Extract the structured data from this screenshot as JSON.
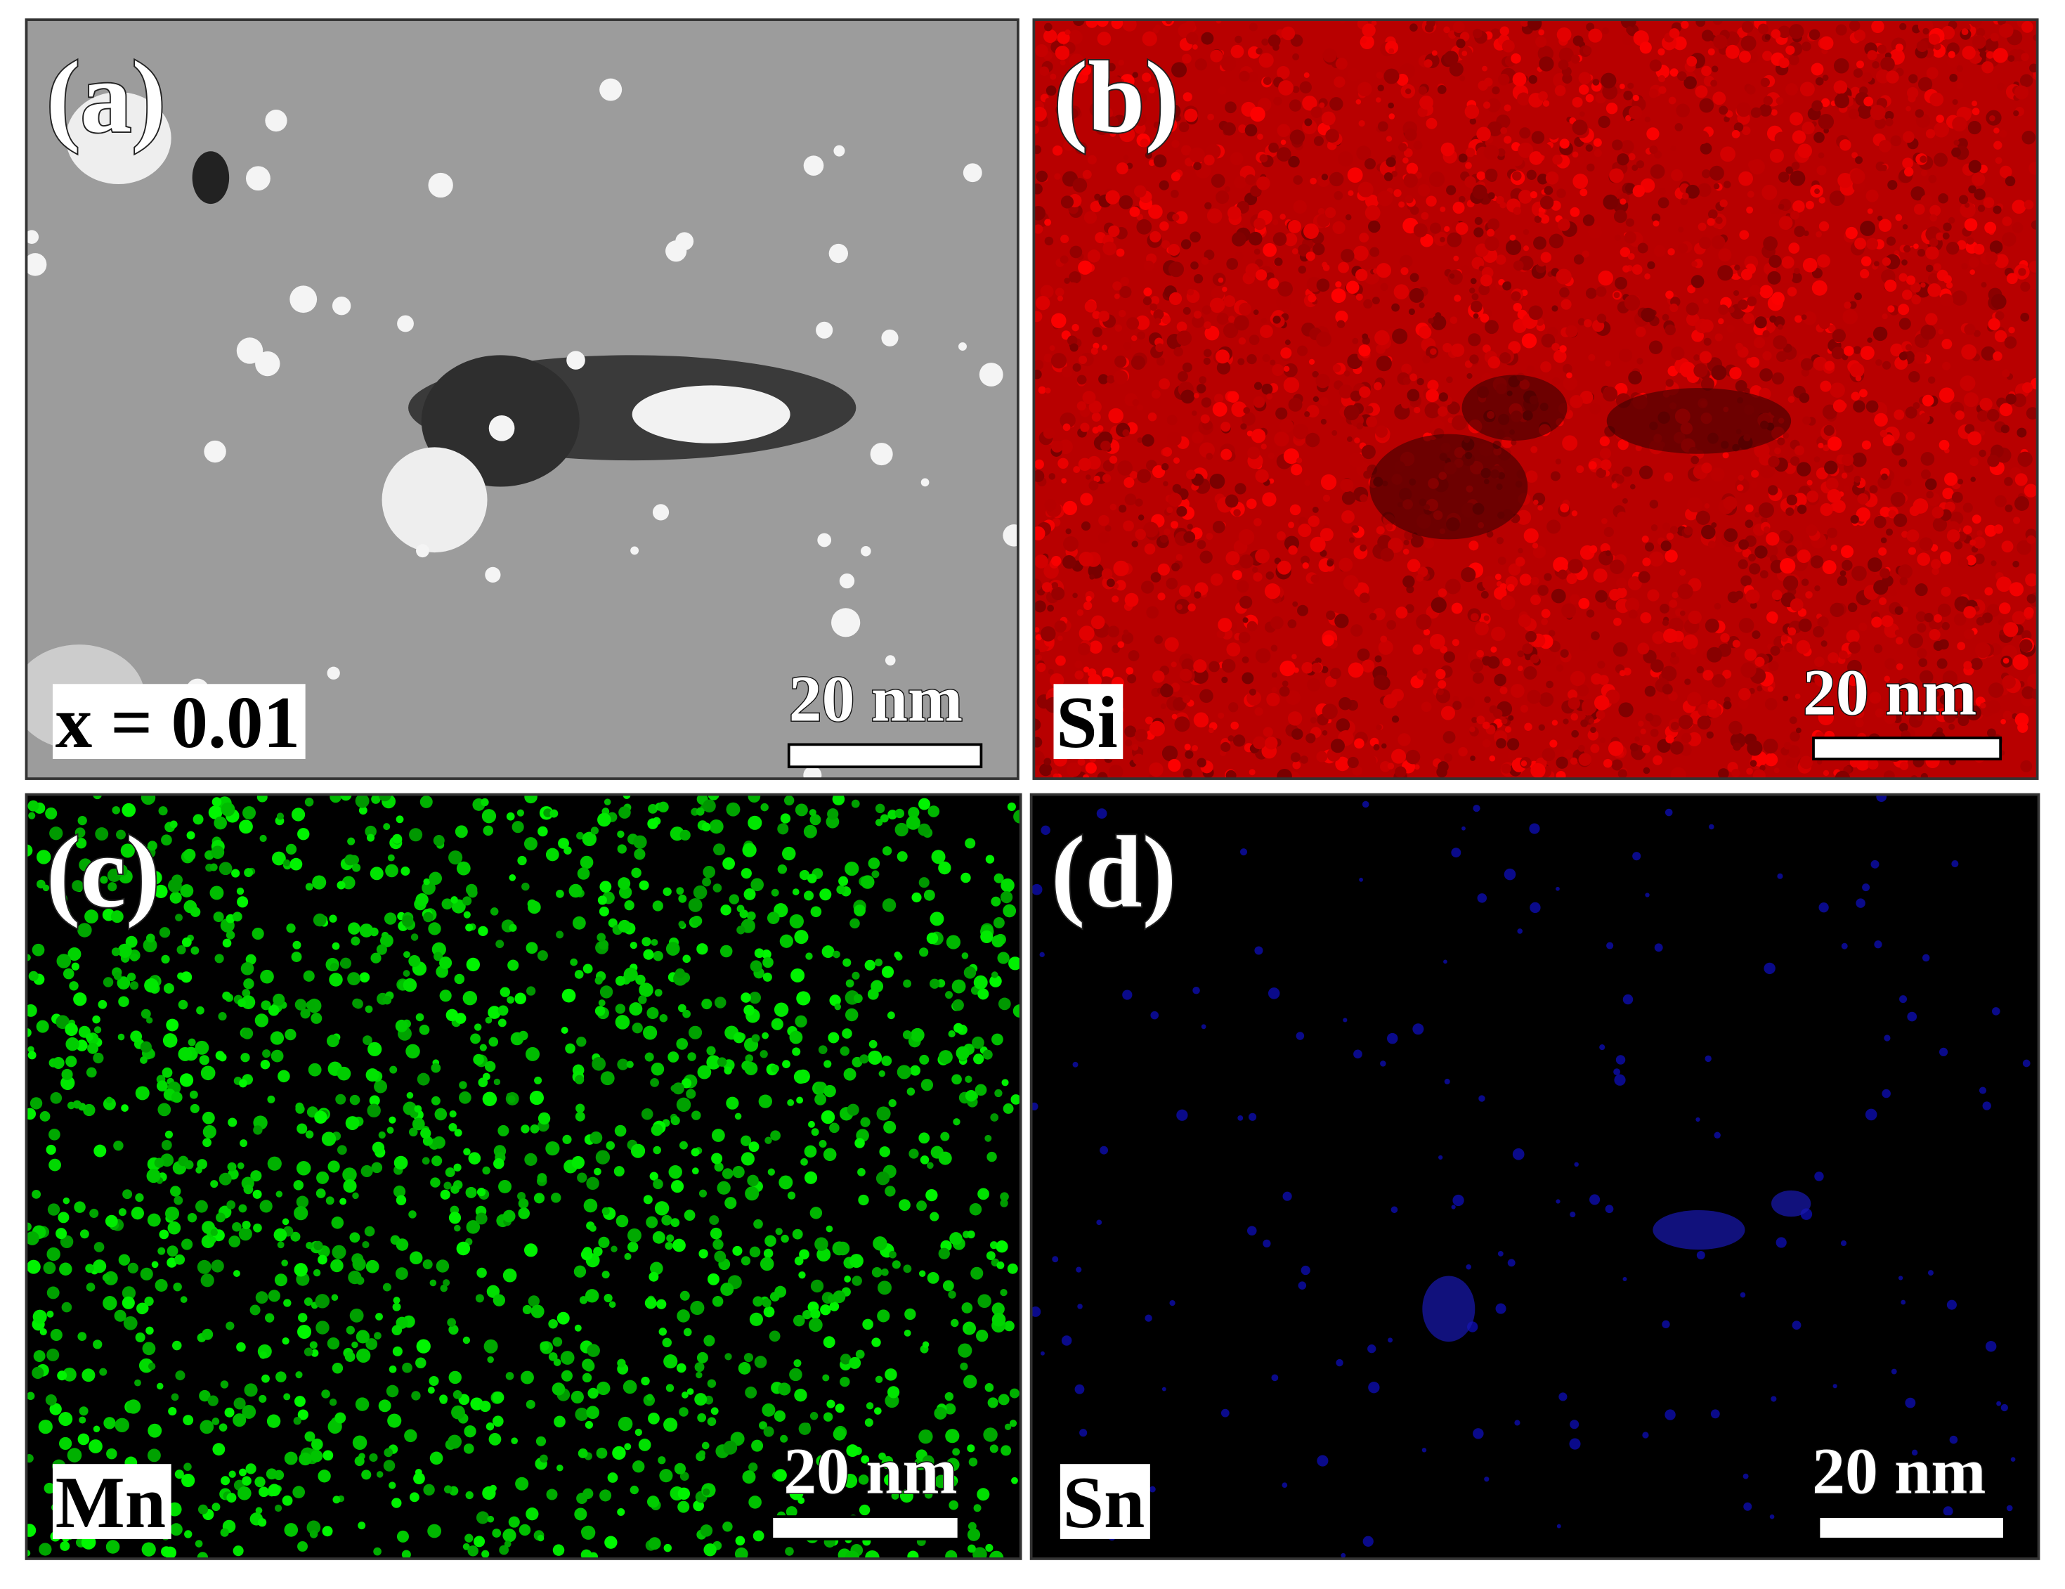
{
  "panels": [
    {
      "label": "(a)",
      "tag": "x = 0.01",
      "scale_bar": "20 nm"
    },
    {
      "label": "(b)",
      "tag": "Si",
      "scale_bar": "20 nm"
    },
    {
      "label": "(c)",
      "tag": "Mn",
      "scale_bar": "20 nm"
    },
    {
      "label": "(d)",
      "tag": "Sn",
      "scale_bar": "20 nm"
    }
  ]
}
